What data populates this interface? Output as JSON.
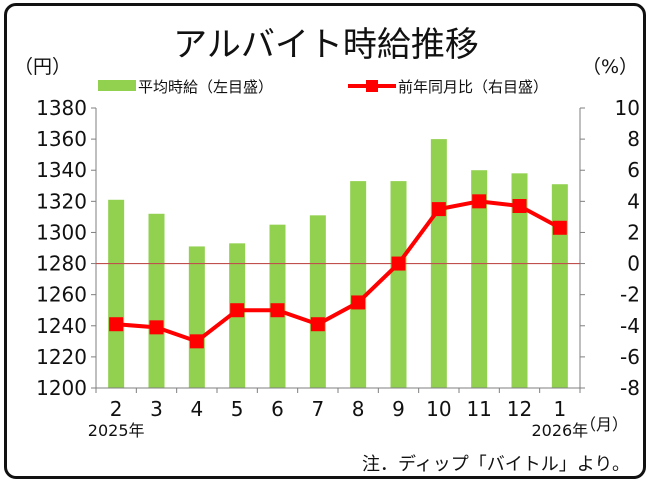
{
  "chart_data": {
    "type": "bar+line",
    "title": "アルバイト時給推移",
    "left_unit": "（円）",
    "right_unit": "（%）",
    "x_unit": "（月）",
    "note": "注．ディップ「バイトル」より。",
    "categories": [
      "2",
      "3",
      "4",
      "5",
      "6",
      "7",
      "8",
      "9",
      "10",
      "11",
      "12",
      "1"
    ],
    "year_labels": [
      {
        "index": 0,
        "text": "2025年"
      },
      {
        "index": 11,
        "text": "2026年"
      }
    ],
    "left_axis": {
      "min": 1200,
      "max": 1380,
      "step": 20,
      "ticks": [
        "1200",
        "1220",
        "1240",
        "1260",
        "1280",
        "1300",
        "1320",
        "1340",
        "1360",
        "1380"
      ]
    },
    "right_axis": {
      "min": -8,
      "max": 10,
      "step": 2,
      "ticks": [
        "-8",
        "-6",
        "-4",
        "-2",
        "0",
        "2",
        "4",
        "6",
        "8",
        "10"
      ]
    },
    "series": [
      {
        "name": "平均時給（左目盛）",
        "kind": "bar",
        "axis": "left",
        "color": "#92d050",
        "values": [
          1321,
          1312,
          1291,
          1293,
          1305,
          1311,
          1333,
          1333,
          1360,
          1340,
          1338,
          1331
        ]
      },
      {
        "name": "前年同月比（右目盛）",
        "kind": "line",
        "axis": "right",
        "color": "#ff0000",
        "values": [
          -3.9,
          -4.1,
          -5.0,
          -3.0,
          -3.0,
          -3.9,
          -2.5,
          0.0,
          3.5,
          4.0,
          3.7,
          2.3
        ]
      }
    ],
    "zero_line_color": "#c0504d",
    "grid": false,
    "legend_position": "top"
  }
}
